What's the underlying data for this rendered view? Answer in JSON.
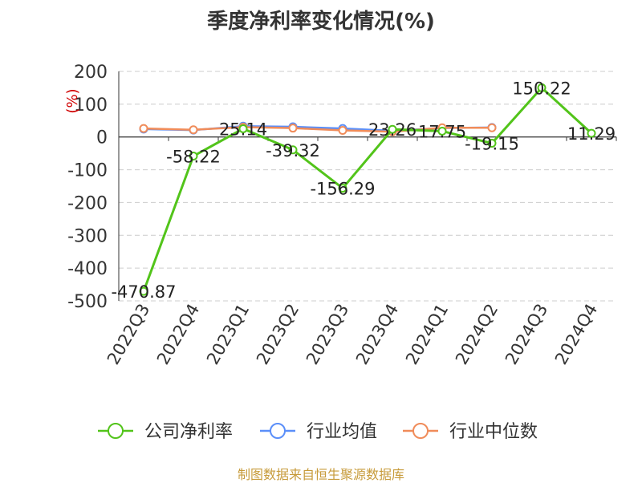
{
  "title": "季度净利率变化情况(%)",
  "footer": "制图数据来自恒生聚源数据库",
  "chart_data": {
    "type": "line",
    "title": "季度净利率变化情况(%)",
    "ylabel": "(%)",
    "ylim": [
      -500,
      200
    ],
    "yticks": [
      200,
      100,
      0,
      -100,
      -200,
      -300,
      -400,
      -500
    ],
    "categories": [
      "2022Q3",
      "2022Q4",
      "2023Q1",
      "2023Q2",
      "2023Q3",
      "2023Q4",
      "2024Q1",
      "2024Q2",
      "2024Q3",
      "2024Q4"
    ],
    "grid": true,
    "legend": "bottom",
    "series": [
      {
        "name": "公司净利率",
        "color": "#52c41a",
        "values": [
          -470.87,
          -58.22,
          25.14,
          -39.32,
          -156.29,
          23.26,
          17.75,
          -19.15,
          150.22,
          11.29
        ],
        "labels": [
          "-470.87",
          "-58.22",
          "25.14",
          "-39.32",
          "-156.29",
          "23.26",
          "17.75",
          "-19.15",
          "150.22",
          "11.29"
        ]
      },
      {
        "name": "行业均值",
        "color": "#5b8ff9",
        "values": [
          24,
          21,
          33,
          31,
          26,
          19,
          27,
          29,
          null,
          null
        ]
      },
      {
        "name": "行业中位数",
        "color": "#f08c5a",
        "values": [
          26,
          22,
          30,
          27,
          20,
          16,
          28,
          28,
          null,
          null
        ]
      }
    ]
  }
}
